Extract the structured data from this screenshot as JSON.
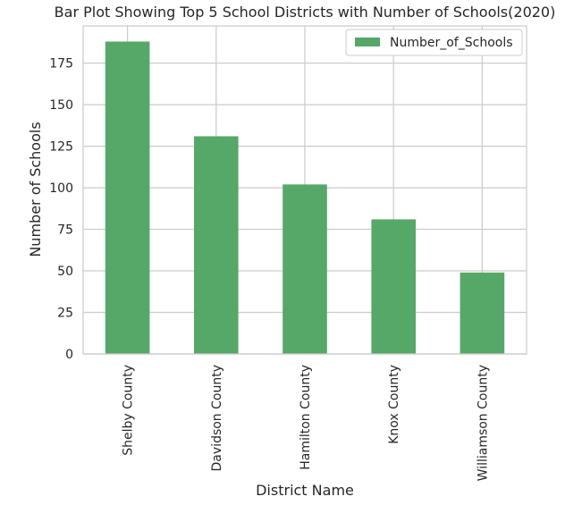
{
  "chart_data": {
    "type": "bar",
    "title": "Bar Plot Showing Top 5 School Districts with  Number of Schools(2020)",
    "xlabel": "District Name",
    "ylabel": "Number of Schools",
    "categories": [
      "Shelby County",
      "Davidson County",
      "Hamilton County",
      "Knox County",
      "Williamson County"
    ],
    "series": [
      {
        "name": "Number_of_Schools",
        "values": [
          188,
          131,
          102,
          81,
          49
        ],
        "color": "#55a868"
      }
    ],
    "ylim": [
      0,
      197.4
    ],
    "yticks": [
      0,
      25,
      50,
      75,
      100,
      125,
      150,
      175
    ],
    "grid": true,
    "legend_position": "top-right"
  }
}
